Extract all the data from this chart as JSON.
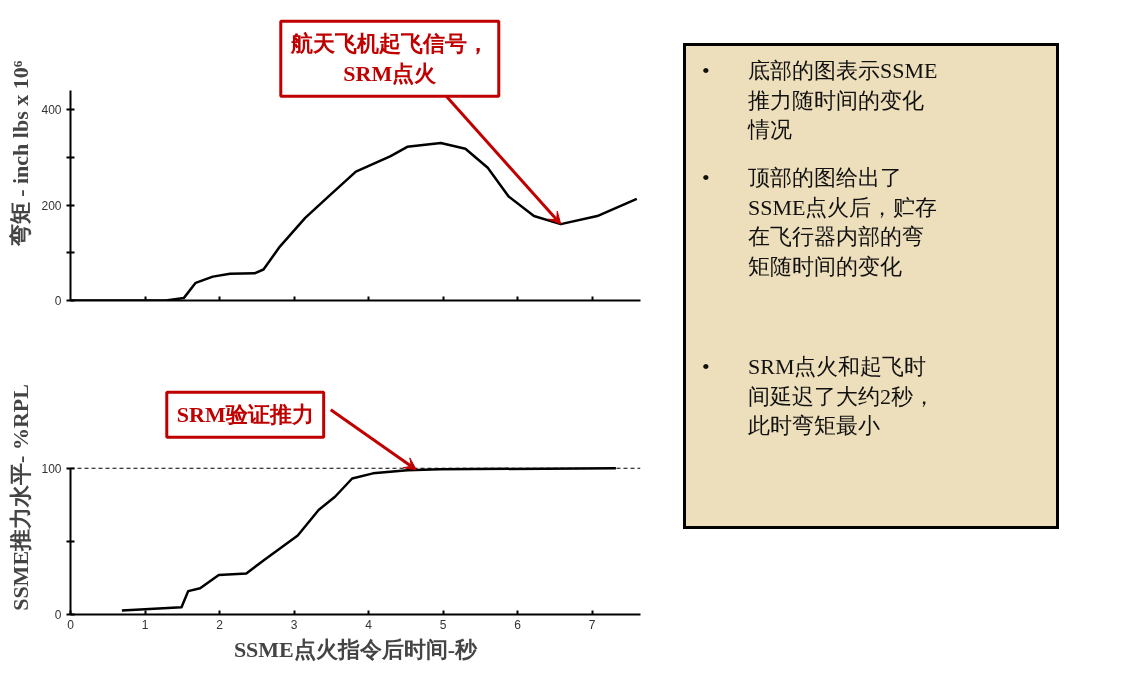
{
  "chart_data": [
    {
      "type": "line",
      "ylabel": "弯矩 - inch lbs x 10⁶",
      "color": "#000000",
      "line_style": "solid",
      "marker": "none",
      "x": [
        0,
        1.28,
        1.52,
        1.68,
        1.91,
        2.14,
        2.47,
        2.59,
        2.81,
        3.15,
        3.49,
        3.83,
        4.29,
        4.52,
        4.97,
        5.3,
        5.6,
        5.88,
        6.22,
        6.58,
        7.07,
        7.6
      ],
      "values": [
        0,
        0,
        5,
        37,
        50,
        56,
        57,
        65,
        113,
        173,
        222,
        270,
        302,
        322,
        330,
        318,
        278,
        218,
        177,
        160,
        177,
        213
      ],
      "xlim": [
        0,
        7.65
      ],
      "xticks": [
        1,
        2,
        3,
        4,
        5,
        6,
        7
      ],
      "ylim": [
        0,
        440
      ],
      "yticks": [
        0,
        {
          "value": 100,
          "label": null
        },
        200,
        {
          "value": 300,
          "label": null
        },
        400
      ],
      "tick_labels": "y",
      "annotations": [
        {
          "text": "航天飞机起飞信号，\nSRM点火",
          "x": 6.58,
          "y": 160
        }
      ]
    },
    {
      "type": "line",
      "xlabel": "SSME点火指令后时间-秒",
      "ylabel": "SSME推力水平- %RPL",
      "color": "#000000",
      "line_style": "solid",
      "marker": "none",
      "x": [
        0.69,
        1.49,
        1.58,
        1.74,
        1.99,
        2.36,
        2.59,
        3.05,
        3.33,
        3.55,
        3.78,
        4.06,
        4.52,
        4.96,
        7.32
      ],
      "values": [
        2.8,
        5,
        16,
        18,
        27,
        28,
        37,
        54,
        71.5,
        80.5,
        93,
        96.5,
        98.6,
        99.3,
        100
      ],
      "xlim": [
        0,
        7.65
      ],
      "xticks": [
        0,
        1,
        2,
        3,
        4,
        5,
        6,
        7
      ],
      "ylim": [
        0,
        100
      ],
      "yticks": [
        0,
        {
          "value": 50,
          "label": null
        },
        100
      ],
      "ref_lines": [
        {
          "axis": "y",
          "value": 100,
          "color": "#000000",
          "line_style": "dashed"
        }
      ],
      "annotations": [
        {
          "text": "SRM验证推力",
          "x": 4.64,
          "y": 99
        }
      ]
    },
    {
      "type": "other",
      "annotations": [
        "• 底部的图表示SSME推力随时间的变化情况",
        "• 顶部的图给出了SSME点火后，贮存在飞行器内部的弯矩随时间的变化",
        "• SRM点火和起飞时间延迟了大约2秒，此时弯矩最小"
      ]
    }
  ]
}
